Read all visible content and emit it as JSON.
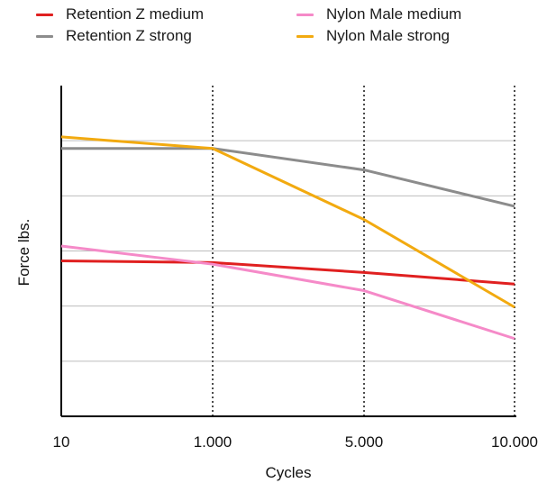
{
  "chart_data": {
    "type": "line",
    "title": "",
    "xlabel": "Cycles",
    "ylabel": "Force lbs.",
    "x": [
      "10",
      "1.000",
      "5.000",
      "10.000"
    ],
    "ylim": [
      0,
      100
    ],
    "grid": true,
    "legend_position": "top",
    "series": [
      {
        "name": "Retention Z medium",
        "color": "#e02020",
        "values": [
          47,
          46.5,
          43.5,
          40
        ]
      },
      {
        "name": "Retention Z strong",
        "color": "#8c8c8c",
        "values": [
          81,
          81,
          74.5,
          63.5
        ]
      },
      {
        "name": "Nylon Male medium",
        "color": "#f58ac8",
        "values": [
          51.5,
          46,
          38,
          23.5
        ]
      },
      {
        "name": "Nylon Male strong",
        "color": "#f2aa10",
        "values": [
          84.5,
          81,
          59.5,
          33
        ]
      }
    ]
  }
}
